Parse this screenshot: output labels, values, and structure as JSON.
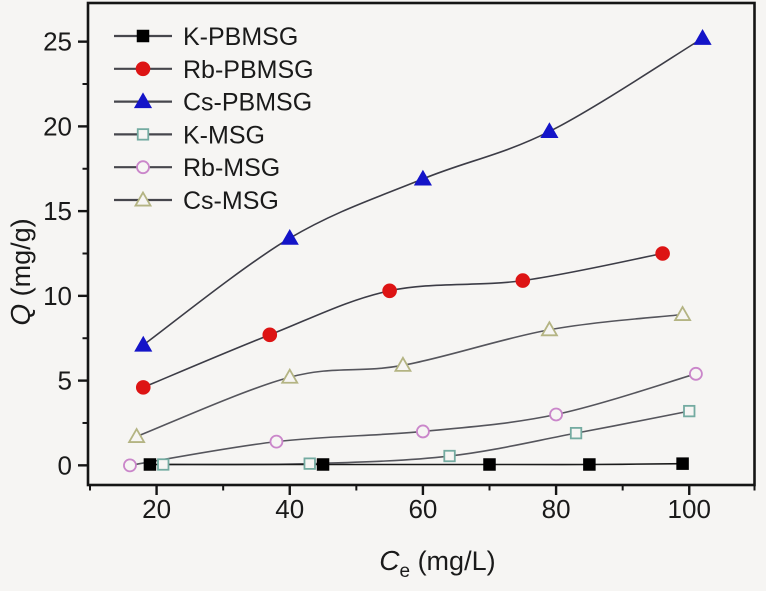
{
  "figure": {
    "background": "#f6f5f3",
    "frame_color": "#151515",
    "text_color": "#1a1a1a",
    "curve_color": "#3c3c46"
  },
  "chart_data": {
    "type": "line",
    "title": "",
    "xlabel": {
      "italic": "C",
      "sub": "e",
      "rest": " (mg/L)"
    },
    "ylabel": {
      "italic": "Q",
      "rest": " (mg/g)"
    },
    "xlim": [
      9.7,
      109.8
    ],
    "ylim": [
      -1.16,
      27.28
    ],
    "x_major_ticks": [
      20,
      40,
      60,
      80,
      100
    ],
    "x_minor_ticks": [
      10,
      30,
      50,
      70,
      90,
      110
    ],
    "y_major_ticks": [
      0,
      5,
      10,
      15,
      20,
      25
    ],
    "y_minor_ticks": [
      2.5,
      7.5,
      12.5,
      17.5,
      22.5
    ],
    "grid": false,
    "legend_position": "top-left",
    "series": [
      {
        "name": "K-PBMSG",
        "marker": "filled-square",
        "color": "#000000",
        "line_color": "#1a1a1a",
        "points": [
          [
            19,
            0.05
          ],
          [
            45,
            0.05
          ],
          [
            70,
            0.05
          ],
          [
            85,
            0.05
          ],
          [
            99,
            0.1
          ]
        ]
      },
      {
        "name": "Rb-PBMSG",
        "marker": "filled-circle",
        "color": "#dd1414",
        "line_color": "#3c3c46",
        "points": [
          [
            18,
            4.6
          ],
          [
            37,
            7.7
          ],
          [
            55,
            10.3
          ],
          [
            75,
            10.9
          ],
          [
            96,
            12.5
          ]
        ]
      },
      {
        "name": "Cs-PBMSG",
        "marker": "filled-triangle",
        "color": "#1414c8",
        "line_color": "#3c3c46",
        "points": [
          [
            18,
            7.1
          ],
          [
            40,
            13.4
          ],
          [
            60,
            16.9
          ],
          [
            79,
            19.7
          ],
          [
            102,
            25.2
          ]
        ]
      },
      {
        "name": "K-MSG",
        "marker": "open-square",
        "color": "#74aba1",
        "line_color": "#55555c",
        "points": [
          [
            21,
            0.05
          ],
          [
            43,
            0.1
          ],
          [
            64,
            0.55
          ],
          [
            83,
            1.9
          ],
          [
            100,
            3.2
          ]
        ]
      },
      {
        "name": "Rb-MSG",
        "marker": "open-circle",
        "color": "#ca86ca",
        "line_color": "#55555c",
        "points": [
          [
            16,
            0.0
          ],
          [
            38,
            1.4
          ],
          [
            60,
            2.0
          ],
          [
            80,
            3.0
          ],
          [
            101,
            5.4
          ]
        ]
      },
      {
        "name": "Cs-MSG",
        "marker": "open-triangle",
        "color": "#b4b483",
        "line_color": "#55555c",
        "points": [
          [
            17,
            1.7
          ],
          [
            40,
            5.2
          ],
          [
            57,
            5.9
          ],
          [
            79,
            8.0
          ],
          [
            99,
            8.9
          ]
        ]
      }
    ]
  }
}
